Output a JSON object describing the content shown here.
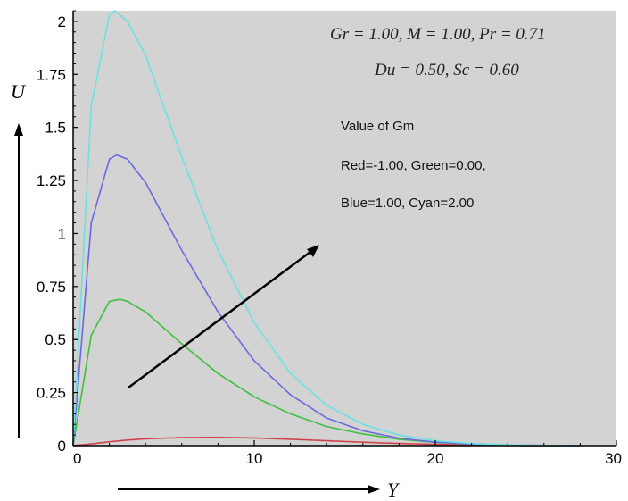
{
  "chart_data": {
    "type": "line",
    "xlabel": "Y",
    "ylabel": "U",
    "xlim": [
      0,
      30
    ],
    "ylim": [
      0,
      2.05
    ],
    "xticks": [
      "0",
      "10",
      "20",
      "30"
    ],
    "yticks": [
      "0",
      "0.25",
      "0.5",
      "0.75",
      "1",
      "1.25",
      "1.5",
      "1.75",
      "2"
    ],
    "grid": false,
    "background": "#d3d3d3",
    "annotations": {
      "params_line1": "Gr = 1.00, M = 1.00, Pr = 0.71",
      "params_line2": "Du = 0.50, Sc = 0.60",
      "legend_title": "Value of Gm",
      "legend_line1": "Red=-1.00, Green=0.00,",
      "legend_line2": "Blue=1.00, Cyan=2.00"
    },
    "series": [
      {
        "color": "#d0404a",
        "peak_x": 7.5,
        "peak_y": 0.04,
        "x": [
          0,
          1,
          2,
          3,
          4,
          6,
          8,
          10,
          12,
          14,
          16,
          18,
          20,
          22,
          24,
          26,
          28
        ],
        "y": [
          0,
          0.008,
          0.018,
          0.026,
          0.032,
          0.038,
          0.039,
          0.036,
          0.03,
          0.023,
          0.016,
          0.01,
          0.006,
          0.003,
          0.001,
          0.0,
          0.0
        ]
      },
      {
        "color": "#3ebf3e",
        "peak_x": 2.6,
        "peak_y": 0.69,
        "x": [
          0,
          1,
          2,
          2.6,
          3,
          4,
          6,
          8,
          10,
          12,
          14,
          16,
          18,
          20,
          22,
          24,
          26,
          28
        ],
        "y": [
          0,
          0.52,
          0.68,
          0.69,
          0.68,
          0.63,
          0.48,
          0.34,
          0.23,
          0.15,
          0.09,
          0.055,
          0.03,
          0.015,
          0.007,
          0.003,
          0.001,
          0.0
        ]
      },
      {
        "color": "#6a6ae0",
        "peak_x": 2.4,
        "peak_y": 1.37,
        "x": [
          0,
          1,
          2,
          2.4,
          3,
          4,
          6,
          8,
          10,
          12,
          14,
          16,
          18,
          20,
          22,
          24,
          26,
          28
        ],
        "y": [
          0,
          1.05,
          1.35,
          1.37,
          1.35,
          1.24,
          0.92,
          0.63,
          0.4,
          0.24,
          0.13,
          0.07,
          0.035,
          0.016,
          0.007,
          0.003,
          0.001,
          0.0
        ]
      },
      {
        "color": "#6ae2e2",
        "peak_x": 2.3,
        "peak_y": 2.05,
        "x": [
          0,
          1,
          2,
          2.3,
          3,
          4,
          6,
          8,
          10,
          12,
          14,
          16,
          18,
          20,
          22,
          24,
          26,
          28
        ],
        "y": [
          0,
          1.6,
          2.03,
          2.05,
          2.0,
          1.84,
          1.36,
          0.92,
          0.58,
          0.34,
          0.19,
          0.1,
          0.05,
          0.023,
          0.01,
          0.004,
          0.001,
          0.0
        ]
      }
    ]
  }
}
